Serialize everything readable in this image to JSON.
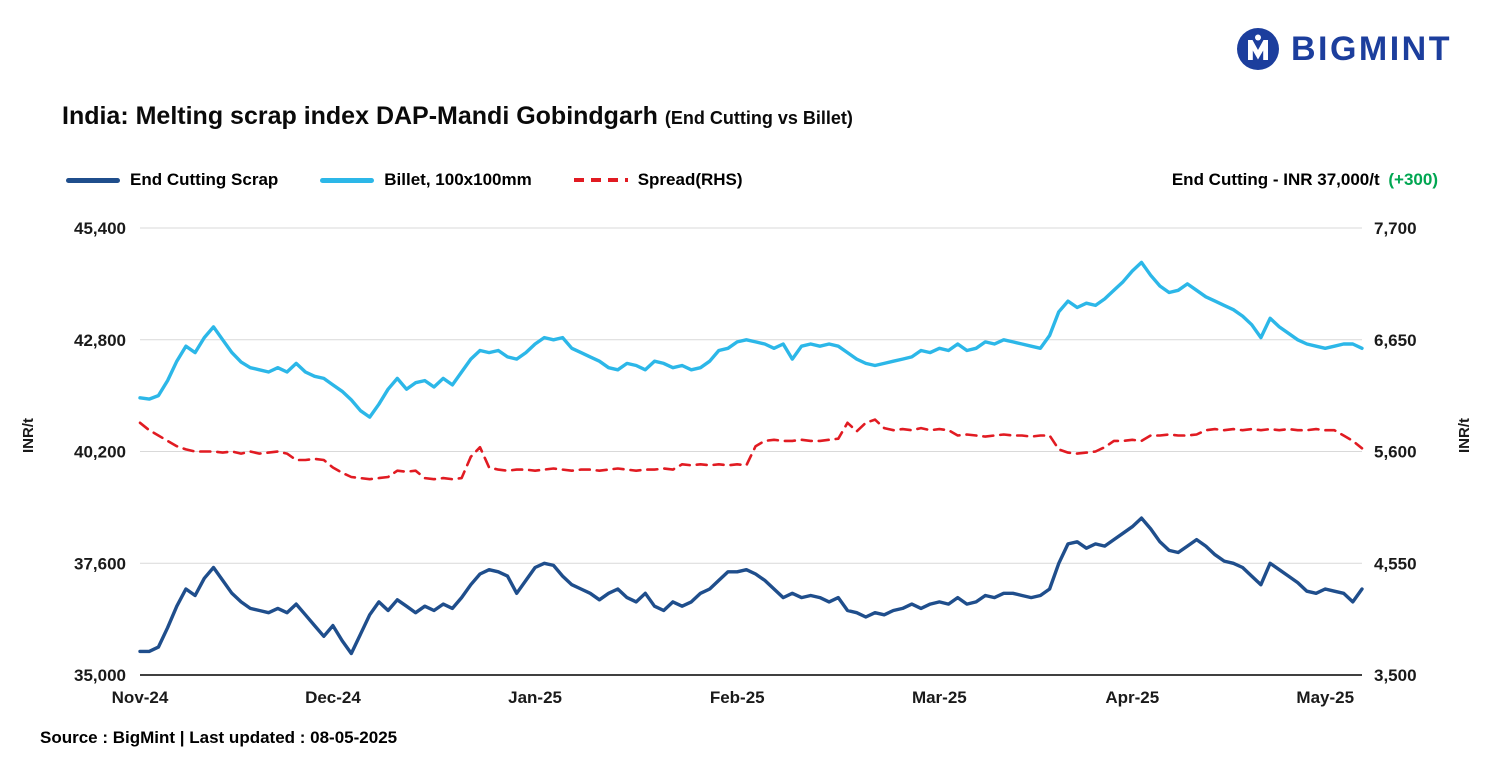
{
  "logo": {
    "text": "BIGMINT",
    "color": "#1c3e9d"
  },
  "annotation": {
    "text": "End Cutting - INR 37,000/t",
    "delta": "(+300)",
    "delta_color": "#00a651"
  },
  "source": {
    "text": "Source : BigMint | Last updated : 08-05-2025"
  },
  "chart_data": {
    "type": "line",
    "title": "India: Melting scrap index DAP-Mandi Gobindgarh",
    "subtitle": "(End Cutting vs Billet)",
    "grid_color": "#d9d9d9",
    "legend_position": "top",
    "left_axis": {
      "label": "INR/t",
      "min": 35000,
      "max": 45400,
      "ticks": [
        {
          "value": 35000,
          "label": "35,000"
        },
        {
          "value": 37600,
          "label": "37,600"
        },
        {
          "value": 40200,
          "label": "40,200"
        },
        {
          "value": 42800,
          "label": "42,800"
        },
        {
          "value": 45400,
          "label": "45,400"
        }
      ]
    },
    "right_axis": {
      "label": "INR/t",
      "min": 3500,
      "max": 7700,
      "ticks": [
        {
          "value": 3500,
          "label": "3,500"
        },
        {
          "value": 4550,
          "label": "4,550"
        },
        {
          "value": 5600,
          "label": "5,600"
        },
        {
          "value": 6650,
          "label": "6,650"
        },
        {
          "value": 7700,
          "label": "7,700"
        }
      ]
    },
    "x_ticks": [
      {
        "label": "Nov-24",
        "index": 0
      },
      {
        "label": "Dec-24",
        "index": 21
      },
      {
        "label": "Jan-25",
        "index": 43
      },
      {
        "label": "Feb-25",
        "index": 65
      },
      {
        "label": "Mar-25",
        "index": 87
      },
      {
        "label": "Apr-25",
        "index": 108
      },
      {
        "label": "May-25",
        "index": 129
      }
    ],
    "series": [
      {
        "id": "end-cutting-scrap",
        "name": "End Cutting Scrap",
        "axis": "left",
        "color": "#1f4e8c",
        "style": "solid",
        "values": [
          35550,
          35550,
          35650,
          36100,
          36600,
          37000,
          36850,
          37250,
          37500,
          37200,
          36900,
          36700,
          36550,
          36500,
          36450,
          36550,
          36450,
          36650,
          36400,
          36150,
          35900,
          36150,
          35800,
          35500,
          35950,
          36400,
          36700,
          36500,
          36750,
          36600,
          36450,
          36600,
          36500,
          36650,
          36550,
          36800,
          37100,
          37350,
          37450,
          37400,
          37300,
          36900,
          37200,
          37500,
          37600,
          37550,
          37300,
          37100,
          37000,
          36900,
          36750,
          36900,
          37000,
          36800,
          36700,
          36900,
          36600,
          36500,
          36700,
          36600,
          36700,
          36900,
          37000,
          37200,
          37400,
          37400,
          37450,
          37350,
          37200,
          37000,
          36800,
          36900,
          36800,
          36850,
          36800,
          36700,
          36800,
          36500,
          36450,
          36350,
          36450,
          36400,
          36500,
          36550,
          36650,
          36550,
          36650,
          36700,
          36650,
          36800,
          36650,
          36700,
          36850,
          36800,
          36900,
          36900,
          36850,
          36800,
          36850,
          37000,
          37600,
          38050,
          38100,
          37950,
          38050,
          38000,
          38150,
          38300,
          38450,
          38650,
          38400,
          38100,
          37900,
          37850,
          38000,
          38150,
          38000,
          37800,
          37650,
          37600,
          37500,
          37300,
          37100,
          37600,
          37450,
          37300,
          37150,
          36950,
          36900,
          37000,
          36950,
          36900,
          36700,
          37000
        ]
      },
      {
        "id": "billet-100x100mm",
        "name": "Billet, 100x100mm",
        "axis": "left",
        "color": "#2cb7e8",
        "style": "solid",
        "values": [
          41450,
          41420,
          41500,
          41850,
          42300,
          42650,
          42500,
          42850,
          43100,
          42800,
          42500,
          42280,
          42150,
          42100,
          42050,
          42150,
          42050,
          42250,
          42050,
          41950,
          41900,
          41750,
          41600,
          41400,
          41150,
          41000,
          41300,
          41650,
          41900,
          41650,
          41800,
          41850,
          41700,
          41900,
          41750,
          42050,
          42350,
          42550,
          42500,
          42550,
          42400,
          42350,
          42500,
          42700,
          42850,
          42800,
          42850,
          42600,
          42500,
          42400,
          42300,
          42150,
          42100,
          42250,
          42200,
          42100,
          42300,
          42250,
          42150,
          42200,
          42100,
          42150,
          42300,
          42550,
          42600,
          42750,
          42800,
          42750,
          42700,
          42600,
          42700,
          42350,
          42650,
          42700,
          42650,
          42700,
          42650,
          42500,
          42350,
          42250,
          42200,
          42250,
          42300,
          42350,
          42400,
          42550,
          42500,
          42600,
          42550,
          42700,
          42550,
          42600,
          42750,
          42700,
          42800,
          42750,
          42700,
          42650,
          42600,
          42900,
          43450,
          43700,
          43550,
          43650,
          43600,
          43750,
          43950,
          44150,
          44400,
          44600,
          44300,
          44050,
          43900,
          43950,
          44100,
          43950,
          43800,
          43700,
          43600,
          43500,
          43350,
          43150,
          42850,
          43300,
          43100,
          42950,
          42800,
          42700,
          42650,
          42600,
          42650,
          42700,
          42700,
          42600
        ]
      },
      {
        "id": "spread-rhs",
        "name": "Spread(RHS)",
        "axis": "right",
        "color": "#e11b22",
        "style": "dashed",
        "values": [
          5870,
          5800,
          5750,
          5700,
          5650,
          5620,
          5600,
          5600,
          5600,
          5590,
          5600,
          5580,
          5600,
          5580,
          5590,
          5600,
          5580,
          5520,
          5520,
          5530,
          5520,
          5450,
          5400,
          5360,
          5350,
          5340,
          5350,
          5360,
          5420,
          5410,
          5420,
          5350,
          5340,
          5350,
          5340,
          5350,
          5550,
          5640,
          5450,
          5430,
          5420,
          5430,
          5430,
          5420,
          5430,
          5440,
          5430,
          5420,
          5430,
          5430,
          5420,
          5430,
          5440,
          5430,
          5420,
          5430,
          5430,
          5440,
          5430,
          5480,
          5470,
          5480,
          5470,
          5480,
          5470,
          5480,
          5470,
          5650,
          5700,
          5710,
          5700,
          5700,
          5710,
          5700,
          5700,
          5710,
          5720,
          5870,
          5790,
          5870,
          5900,
          5820,
          5800,
          5810,
          5800,
          5820,
          5800,
          5810,
          5800,
          5750,
          5760,
          5750,
          5740,
          5750,
          5760,
          5750,
          5750,
          5740,
          5750,
          5750,
          5620,
          5590,
          5580,
          5590,
          5600,
          5640,
          5700,
          5700,
          5710,
          5700,
          5750,
          5750,
          5760,
          5750,
          5750,
          5760,
          5800,
          5810,
          5800,
          5810,
          5800,
          5810,
          5800,
          5810,
          5800,
          5810,
          5800,
          5800,
          5810,
          5800,
          5800,
          5750,
          5700,
          5630
        ]
      }
    ]
  }
}
